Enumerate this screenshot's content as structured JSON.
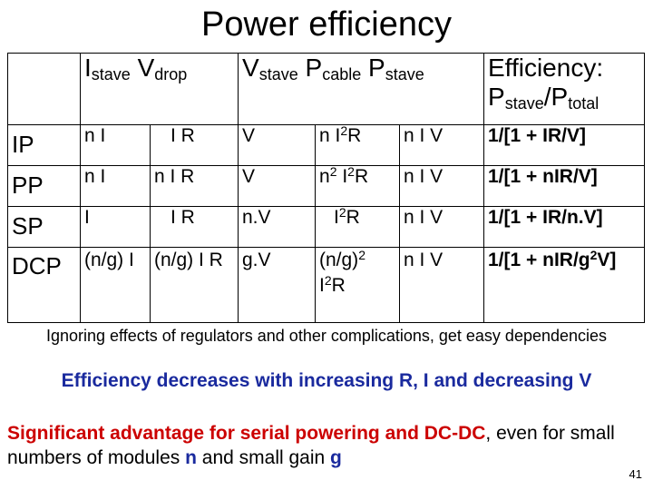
{
  "title": "Power efficiency",
  "headers": {
    "istave_main": "I",
    "istave_sub": "stave",
    "vdrop_main": "V",
    "vdrop_sub": "drop",
    "vstave_main": "V",
    "vstave_sub": "stave",
    "pcable_main": "P",
    "pcable_sub": "cable",
    "pstave_main": "P",
    "pstave_sub": "stave",
    "eff_line1": "Efficiency:",
    "eff_p1_main": "P",
    "eff_p1_sub": "stave",
    "eff_slash": "/",
    "eff_p2_main": "P",
    "eff_p2_sub": "total"
  },
  "rows": [
    {
      "label": "IP",
      "istave": "n I",
      "vdrop": "I R",
      "vstave": "V",
      "pcable_a": "n I",
      "pcable_sup": "2",
      "pcable_b": "R",
      "pstave": "n I V",
      "eff_a": "1/[1 + IR/V]",
      "eff_sup": "",
      "eff_b": ""
    },
    {
      "label": "PP",
      "istave": "n I",
      "vdrop": "n I R",
      "vstave": "V",
      "pcable_a": "n",
      "pcable_sup": "2",
      "pcable_b": "I",
      "pcable_sup2": "2",
      "pcable_c": "R",
      "pstave": "n I V",
      "eff_a": "1/[1 + nIR/V]",
      "eff_sup": "",
      "eff_b": ""
    },
    {
      "label": "SP",
      "istave": "I",
      "vdrop": "I R",
      "vstave": "n.V",
      "pcable_a": "I",
      "pcable_sup": "2",
      "pcable_b": "R",
      "pstave": "n I V",
      "eff_a": "1/[1 + IR/n.V]",
      "eff_sup": "",
      "eff_b": ""
    },
    {
      "label": "DCP",
      "istave": "(n/g) I",
      "vdrop": "(n/g) I R",
      "vstave": "g.V",
      "pcable_a": "(n/g)",
      "pcable_sup": "2",
      "pcable_b": "I",
      "pcable_sup2": "2",
      "pcable_c": "R",
      "pstave": "n I V",
      "eff_a": "1/[1 + nIR/g",
      "eff_sup": "2",
      "eff_b": "V]"
    }
  ],
  "note": "Ignoring effects of regulators and other complications, get easy dependencies",
  "decrease": "Efficiency decreases with increasing R, I and decreasing V",
  "advantage": {
    "red": "Significant advantage for serial powering and DC-DC",
    "text1": ", even for small numbers of modules ",
    "n": "n",
    "text2": " and small gain ",
    "g": "g"
  },
  "page_number": "41",
  "colors": {
    "blue": "#1a2a9e",
    "red": "#cc0000"
  }
}
